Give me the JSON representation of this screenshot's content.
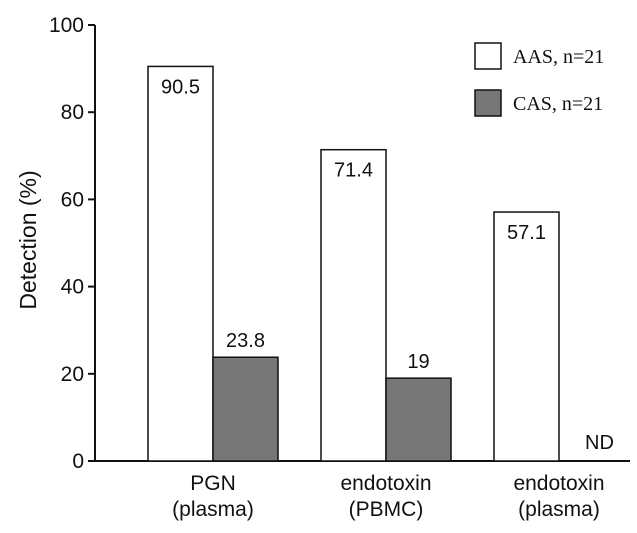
{
  "chart_data": {
    "type": "bar",
    "categories": [
      [
        "PGN",
        "(plasma)"
      ],
      [
        "endotoxin",
        "(PBMC)"
      ],
      [
        "endotoxin",
        "(plasma)"
      ]
    ],
    "series": [
      {
        "name": "AAS, n=21",
        "color": "#ffffff",
        "values": [
          90.5,
          71.4,
          57.1
        ],
        "labels": [
          "90.5",
          "71.4",
          "57.1"
        ]
      },
      {
        "name": "CAS, n=21",
        "color": "#777777",
        "values": [
          23.8,
          19,
          null
        ],
        "labels": [
          "23.8",
          "19",
          "ND"
        ]
      }
    ],
    "ylabel": "Detection (%)",
    "xlabel": "",
    "ylim": [
      0,
      100
    ],
    "yticks": [
      0,
      20,
      40,
      60,
      80,
      100
    ],
    "grid": false,
    "legend": "top-right"
  }
}
